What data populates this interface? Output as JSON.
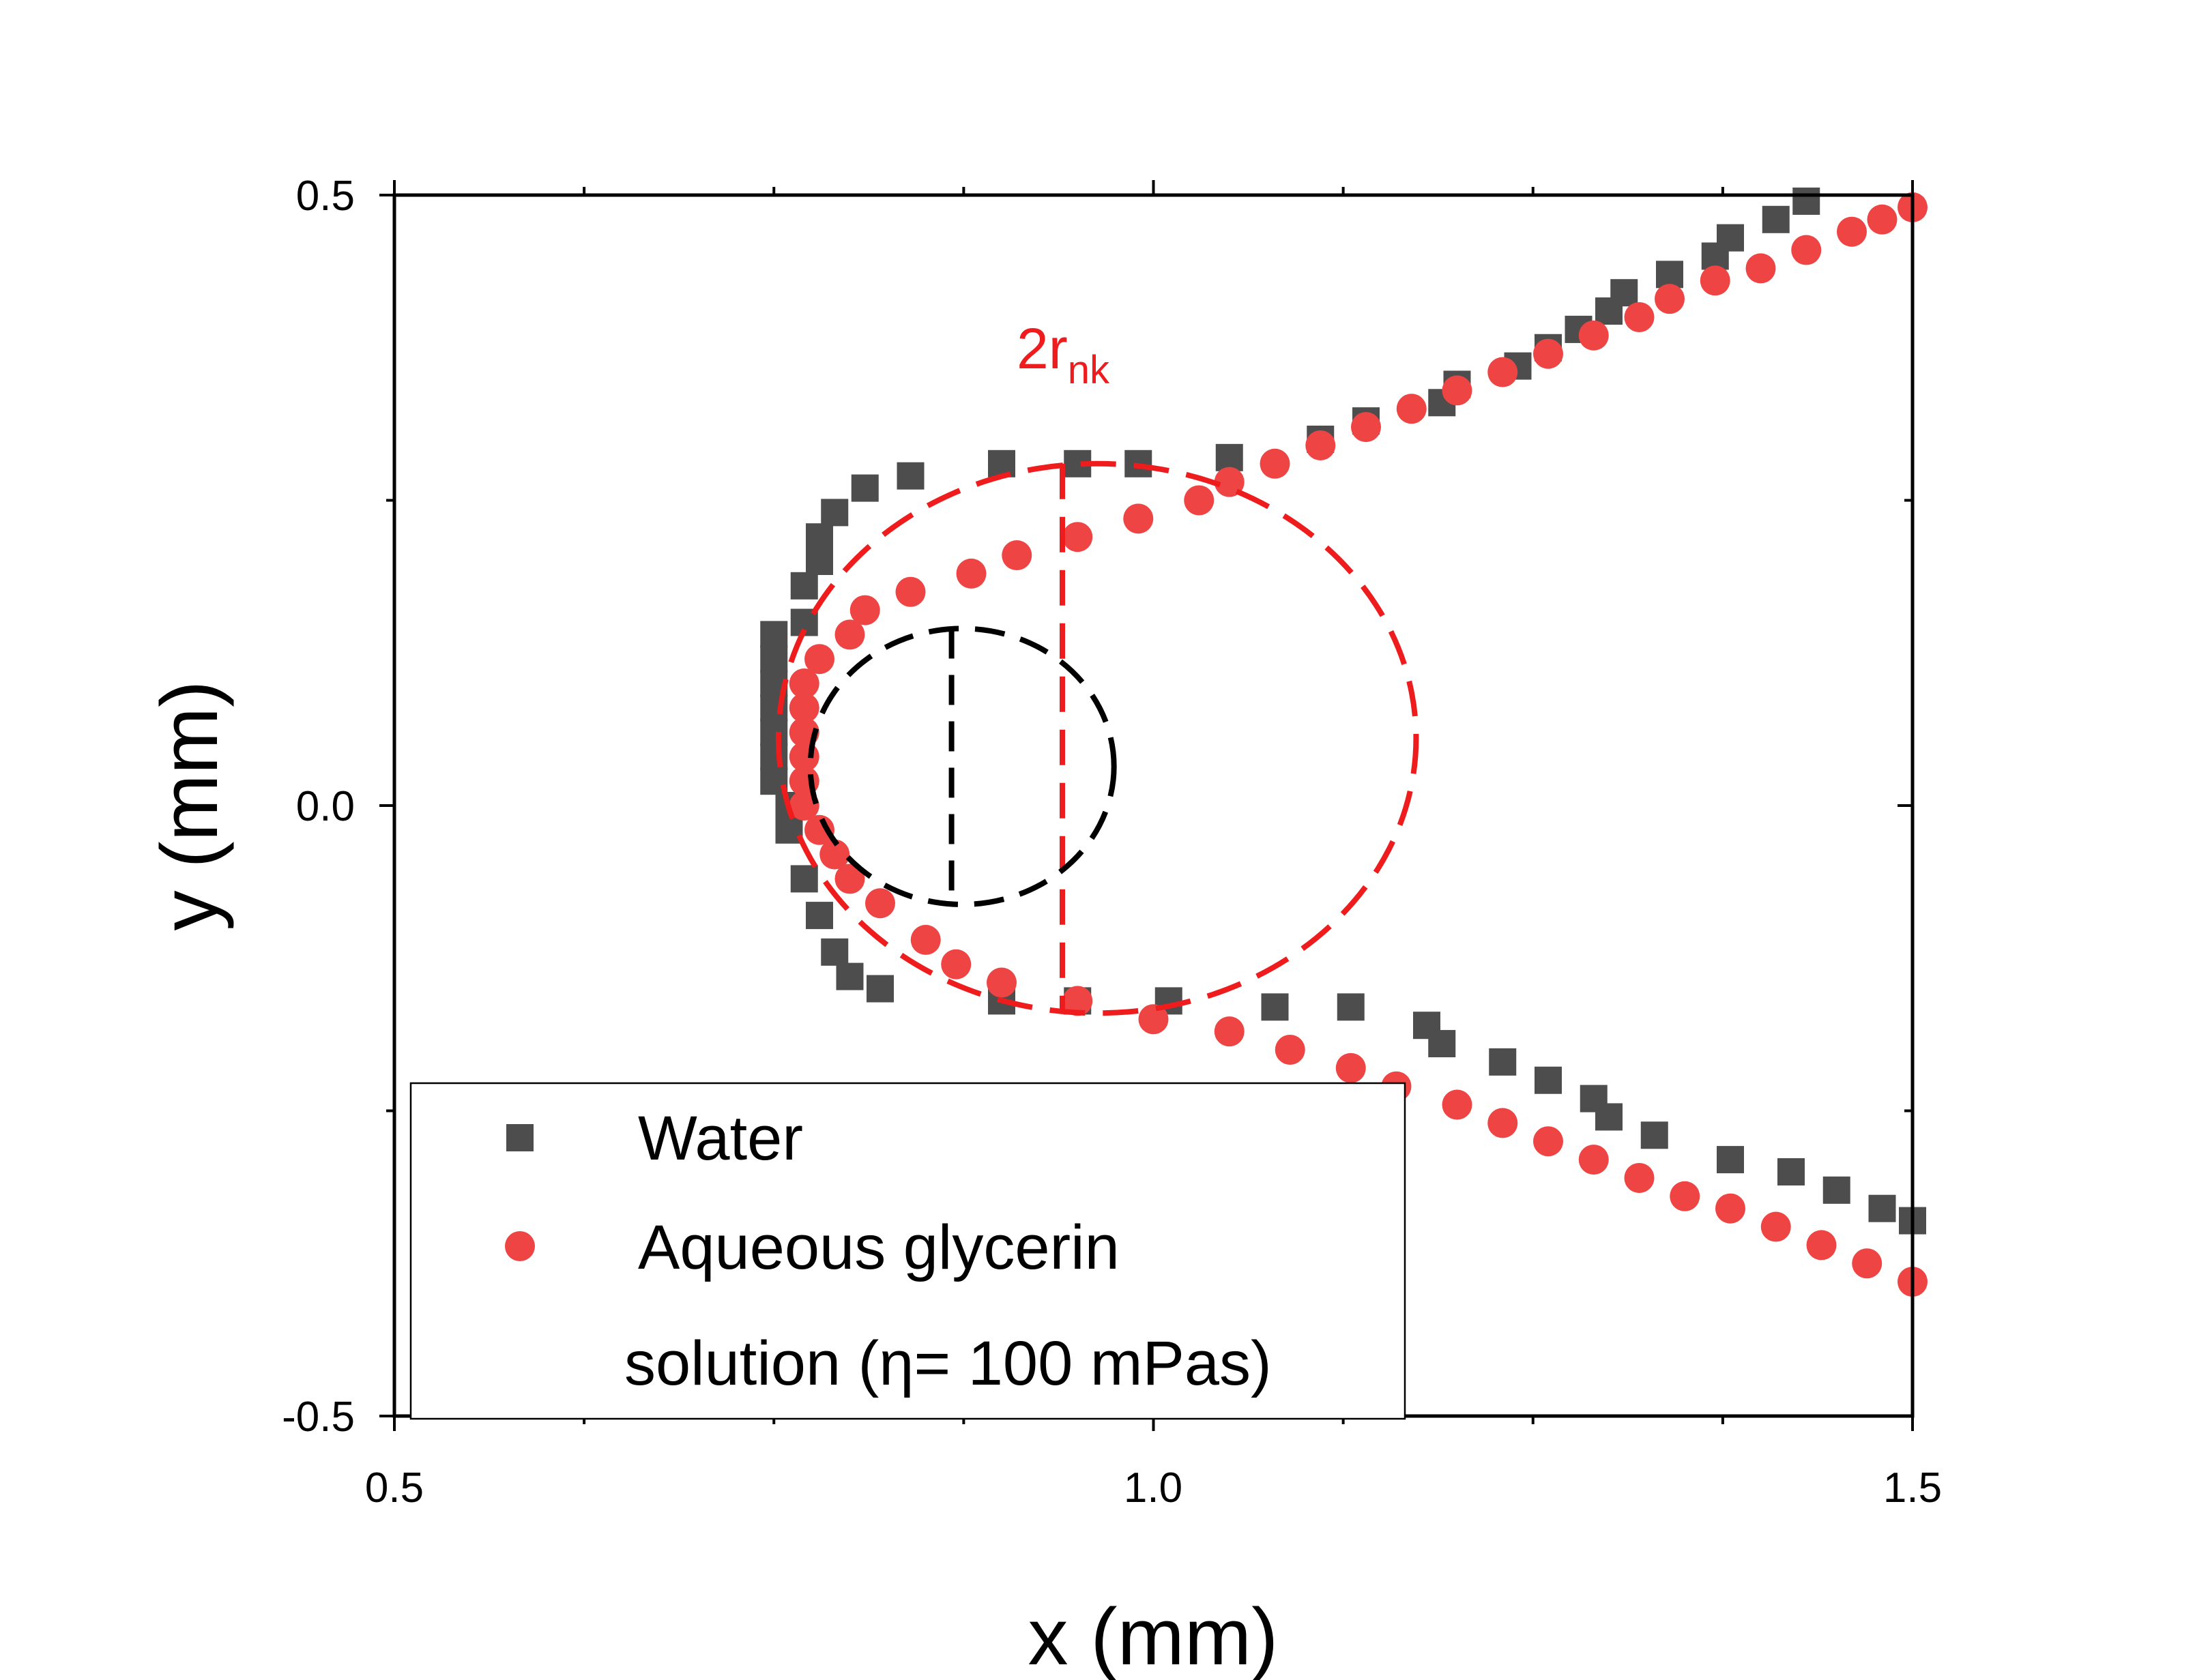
{
  "chart_data": {
    "type": "scatter",
    "xlabel": "x (mm)",
    "ylabel": "y (mm)",
    "xlim": [
      0.5,
      1.5
    ],
    "ylim": [
      -0.5,
      0.5
    ],
    "x_ticks": [
      "0.5",
      "1.0",
      "1.5"
    ],
    "y_ticks": [
      "0.5",
      "0.0",
      "-0.5"
    ],
    "colors": {
      "water": "#4d4d4d",
      "glycerin": "#ee4444",
      "annotation": "#ee1c1c",
      "inner_circle": "#000000"
    },
    "series": [
      {
        "name": "Water",
        "marker": "square",
        "points": [
          [
            0.75,
            0.14
          ],
          [
            0.75,
            0.12
          ],
          [
            0.75,
            0.1
          ],
          [
            0.75,
            0.08
          ],
          [
            0.75,
            0.06
          ],
          [
            0.75,
            0.04
          ],
          [
            0.75,
            0.02
          ],
          [
            0.76,
            0.0
          ],
          [
            0.76,
            -0.02
          ],
          [
            0.77,
            -0.06
          ],
          [
            0.78,
            -0.09
          ],
          [
            0.79,
            -0.12
          ],
          [
            0.8,
            -0.14
          ],
          [
            0.82,
            -0.15
          ],
          [
            0.77,
            0.18
          ],
          [
            0.77,
            0.15
          ],
          [
            0.78,
            0.22
          ],
          [
            0.78,
            0.2
          ],
          [
            0.79,
            0.24
          ],
          [
            0.81,
            0.26
          ],
          [
            0.84,
            0.27
          ],
          [
            0.9,
            0.28
          ],
          [
            0.95,
            0.28
          ],
          [
            0.99,
            0.28
          ],
          [
            1.05,
            0.285
          ],
          [
            1.11,
            0.3
          ],
          [
            1.14,
            0.315
          ],
          [
            1.19,
            0.33
          ],
          [
            1.2,
            0.345
          ],
          [
            1.24,
            0.36
          ],
          [
            1.26,
            0.375
          ],
          [
            1.28,
            0.39
          ],
          [
            1.3,
            0.405
          ],
          [
            1.31,
            0.42
          ],
          [
            1.34,
            0.435
          ],
          [
            1.37,
            0.45
          ],
          [
            1.38,
            0.465
          ],
          [
            1.41,
            0.48
          ],
          [
            1.43,
            0.495
          ],
          [
            0.9,
            -0.16
          ],
          [
            0.95,
            -0.16
          ],
          [
            1.01,
            -0.16
          ],
          [
            1.08,
            -0.165
          ],
          [
            1.13,
            -0.165
          ],
          [
            1.18,
            -0.18
          ],
          [
            1.19,
            -0.195
          ],
          [
            1.23,
            -0.21
          ],
          [
            1.26,
            -0.225
          ],
          [
            1.29,
            -0.24
          ],
          [
            1.3,
            -0.255
          ],
          [
            1.33,
            -0.27
          ],
          [
            1.38,
            -0.29
          ],
          [
            1.42,
            -0.3
          ],
          [
            1.45,
            -0.315
          ],
          [
            1.48,
            -0.33
          ],
          [
            1.5,
            -0.34
          ]
        ]
      },
      {
        "name": "Aqueous glycerin solution (η= 100 mPas)",
        "legend_lines": [
          "Aqueous glycerin",
          "solution (η= 100 mPas)"
        ],
        "marker": "circle",
        "points": [
          [
            0.77,
            0.1
          ],
          [
            0.77,
            0.08
          ],
          [
            0.77,
            0.06
          ],
          [
            0.77,
            0.04
          ],
          [
            0.77,
            0.02
          ],
          [
            0.77,
            0.0
          ],
          [
            0.78,
            -0.02
          ],
          [
            0.79,
            -0.04
          ],
          [
            0.8,
            -0.06
          ],
          [
            0.82,
            -0.08
          ],
          [
            0.85,
            -0.11
          ],
          [
            0.87,
            -0.13
          ],
          [
            0.9,
            -0.145
          ],
          [
            0.95,
            -0.16
          ],
          [
            1.0,
            -0.175
          ],
          [
            1.05,
            -0.185
          ],
          [
            1.09,
            -0.2
          ],
          [
            1.13,
            -0.215
          ],
          [
            1.16,
            -0.23
          ],
          [
            1.2,
            -0.245
          ],
          [
            1.23,
            -0.26
          ],
          [
            1.26,
            -0.275
          ],
          [
            1.29,
            -0.29
          ],
          [
            1.32,
            -0.305
          ],
          [
            1.35,
            -0.32
          ],
          [
            1.38,
            -0.33
          ],
          [
            1.41,
            -0.345
          ],
          [
            1.44,
            -0.36
          ],
          [
            1.47,
            -0.375
          ],
          [
            1.5,
            -0.39
          ],
          [
            0.78,
            0.12
          ],
          [
            0.8,
            0.14
          ],
          [
            0.81,
            0.16
          ],
          [
            0.84,
            0.175
          ],
          [
            0.88,
            0.19
          ],
          [
            0.91,
            0.205
          ],
          [
            0.95,
            0.22
          ],
          [
            0.99,
            0.235
          ],
          [
            1.03,
            0.25
          ],
          [
            1.05,
            0.265
          ],
          [
            1.08,
            0.28
          ],
          [
            1.11,
            0.295
          ],
          [
            1.14,
            0.31
          ],
          [
            1.17,
            0.325
          ],
          [
            1.2,
            0.34
          ],
          [
            1.23,
            0.355
          ],
          [
            1.26,
            0.37
          ],
          [
            1.29,
            0.385
          ],
          [
            1.32,
            0.4
          ],
          [
            1.34,
            0.415
          ],
          [
            1.37,
            0.43
          ],
          [
            1.4,
            0.44
          ],
          [
            1.43,
            0.455
          ],
          [
            1.46,
            0.47
          ],
          [
            1.48,
            0.48
          ],
          [
            1.5,
            0.49
          ]
        ]
      }
    ],
    "annotations": {
      "outer_circle": {
        "cx": 0.963,
        "cy": 0.055,
        "rx": 0.21,
        "ry": 0.225,
        "style": "dashed",
        "color": "red"
      },
      "outer_diameter_x": 0.94,
      "inner_circle": {
        "cx": 0.874,
        "cy": 0.032,
        "rx": 0.1,
        "ry": 0.113,
        "style": "dashed",
        "color": "black"
      },
      "inner_diameter_x": 0.867,
      "label_main": "2r",
      "label_sub": "nk"
    },
    "legend": {
      "placement": "bottom-left"
    }
  }
}
